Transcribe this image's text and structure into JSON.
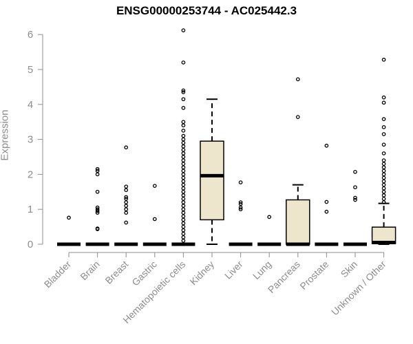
{
  "chart_data": {
    "type": "box",
    "title": "ENSG00000253744 - AC025442.3",
    "xlabel": "",
    "ylabel": "Expression",
    "ylim": [
      0,
      6.3
    ],
    "y_ticks": [
      0,
      1,
      2,
      3,
      4,
      5,
      6
    ],
    "grid": false,
    "box_fill": "#ede6cc",
    "categories": [
      "Bladder",
      "Brain",
      "Breast",
      "Gastric",
      "Hematopoietic cells",
      "Kidney",
      "Liver",
      "Lung",
      "Pancreas",
      "Prostate",
      "Skin",
      "Unknown / Other"
    ],
    "boxes": [
      {
        "q1": 0,
        "median": 0,
        "q3": 0,
        "whisker_low": 0,
        "whisker_high": 0,
        "outliers": [
          0.76
        ]
      },
      {
        "q1": 0,
        "median": 0,
        "q3": 0,
        "whisker_low": 0,
        "whisker_high": 0,
        "outliers": [
          0.43,
          0.45,
          0.9,
          0.95,
          1.0,
          1.05,
          1.5,
          2.0,
          2.1,
          2.15
        ]
      },
      {
        "q1": 0,
        "median": 0,
        "q3": 0,
        "whisker_low": 0,
        "whisker_high": 0,
        "outliers": [
          0.62,
          0.9,
          1.0,
          1.1,
          1.2,
          1.3,
          1.35,
          1.55,
          1.65,
          2.77
        ]
      },
      {
        "q1": 0,
        "median": 0,
        "q3": 0,
        "whisker_low": 0,
        "whisker_high": 0,
        "outliers": [
          0.72,
          1.67
        ]
      },
      {
        "q1": 0,
        "median": 0,
        "q3": 0,
        "whisker_low": 0,
        "whisker_high": 0,
        "outliers": [
          0.1,
          0.2,
          0.3,
          0.4,
          0.5,
          0.6,
          0.7,
          0.8,
          0.9,
          1.0,
          1.1,
          1.2,
          1.3,
          1.4,
          1.5,
          1.6,
          1.7,
          1.8,
          1.9,
          2.0,
          2.1,
          2.2,
          2.3,
          2.4,
          2.5,
          2.6,
          2.7,
          2.8,
          2.9,
          3.0,
          3.1,
          3.25,
          3.4,
          3.5,
          3.9,
          4.15,
          4.35,
          4.4,
          5.2,
          6.12
        ]
      },
      {
        "q1": 0.7,
        "median": 1.96,
        "q3": 2.95,
        "whisker_low": 0,
        "whisker_high": 4.15,
        "outliers": []
      },
      {
        "q1": 0,
        "median": 0,
        "q3": 0,
        "whisker_low": 0,
        "whisker_high": 0,
        "outliers": [
          1.0,
          1.05,
          1.15,
          1.2,
          1.77
        ]
      },
      {
        "q1": 0,
        "median": 0,
        "q3": 0,
        "whisker_low": 0,
        "whisker_high": 0,
        "outliers": [
          0.78
        ]
      },
      {
        "q1": 0,
        "median": 0,
        "q3": 1.27,
        "whisker_low": 0,
        "whisker_high": 1.7,
        "outliers": [
          3.64,
          4.72
        ]
      },
      {
        "q1": 0,
        "median": 0,
        "q3": 0,
        "whisker_low": 0,
        "whisker_high": 0,
        "outliers": [
          0.93,
          1.21,
          2.82
        ]
      },
      {
        "q1": 0,
        "median": 0,
        "q3": 0,
        "whisker_low": 0,
        "whisker_high": 0,
        "outliers": [
          1.27,
          1.33,
          1.63,
          2.07
        ]
      },
      {
        "q1": 0.02,
        "median": 0.05,
        "q3": 0.49,
        "whisker_low": 0,
        "whisker_high": 1.17,
        "outliers": [
          1.2,
          1.3,
          1.4,
          1.5,
          1.6,
          1.7,
          1.8,
          1.9,
          2.0,
          2.1,
          2.2,
          2.3,
          2.4,
          2.6,
          2.85,
          3.15,
          3.35,
          3.58,
          4.05,
          4.2,
          5.28
        ]
      }
    ]
  }
}
